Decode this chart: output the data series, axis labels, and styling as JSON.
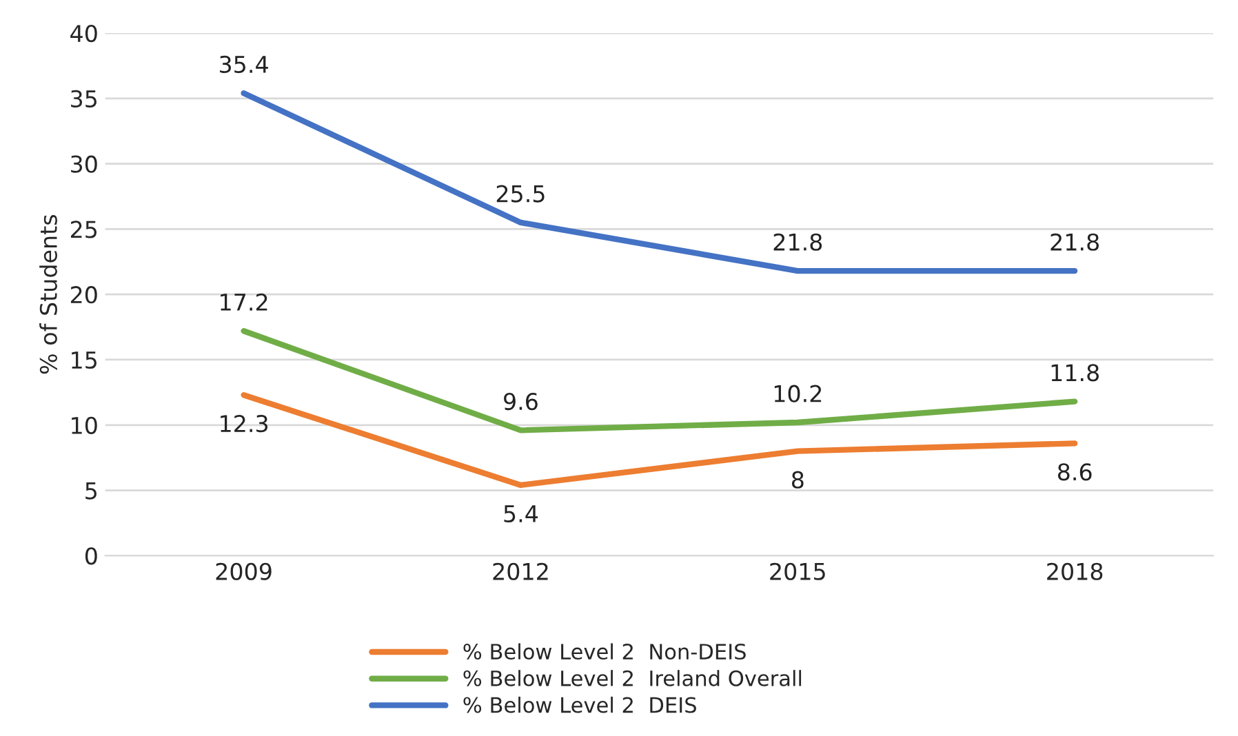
{
  "chart_data": {
    "type": "line",
    "ylabel": "% of Students",
    "categories": [
      "2009",
      "2012",
      "2015",
      "2018"
    ],
    "series": [
      {
        "name": "% Below Level 2  Non-DEIS",
        "color": "#ed7d31",
        "values": [
          12.3,
          5.4,
          8,
          8.6
        ]
      },
      {
        "name": "% Below Level 2  Ireland Overall",
        "color": "#70ad47",
        "values": [
          17.2,
          9.6,
          10.2,
          11.8
        ]
      },
      {
        "name": "% Below Level 2  DEIS",
        "color": "#4472c4",
        "values": [
          35.4,
          25.5,
          21.8,
          21.8
        ]
      }
    ],
    "ylim": [
      0,
      40
    ],
    "yticks": [
      0,
      5,
      10,
      15,
      20,
      25,
      30,
      35,
      40
    ],
    "grid": "y",
    "legend": "bottom",
    "marker": "none",
    "line_style": "solid",
    "data_labels": true
  }
}
